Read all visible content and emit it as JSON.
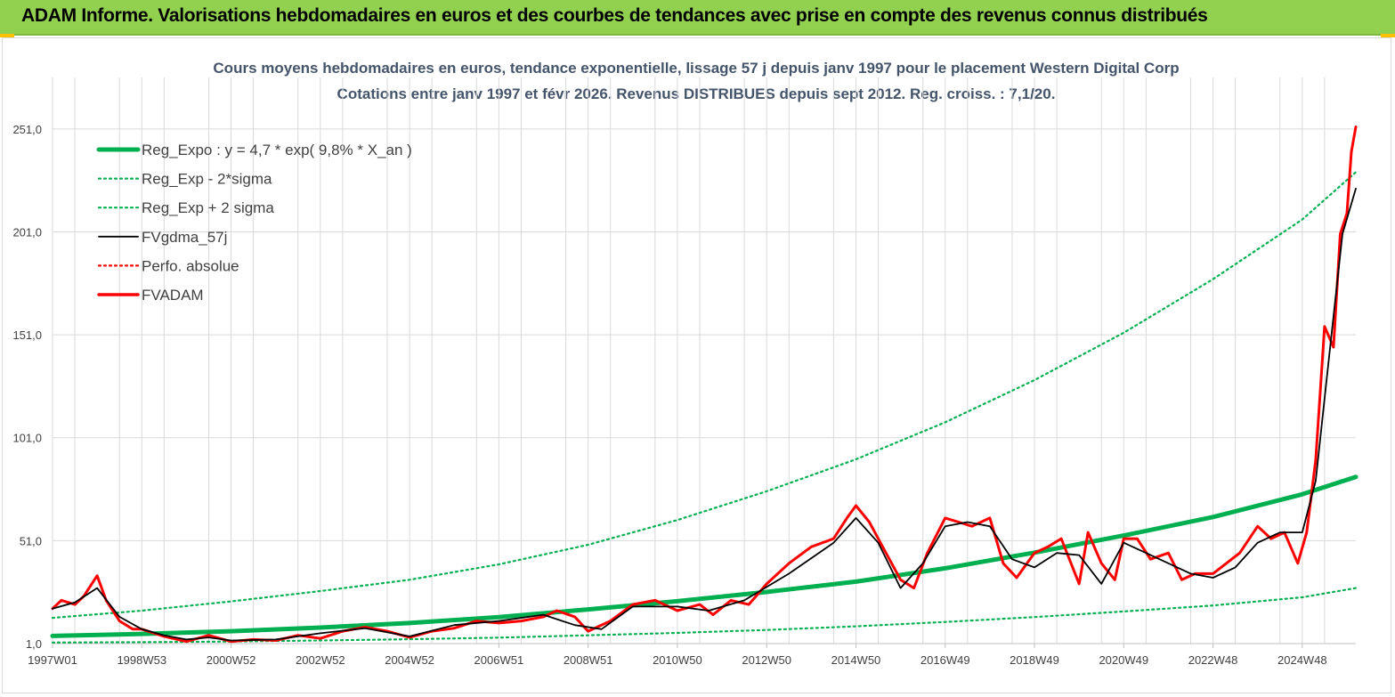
{
  "header": {
    "title": "ADAM Informe. Valorisations hebdomadaires en euros et des courbes de tendances avec prise en compte des revenus connus distribués"
  },
  "colors": {
    "banner": "#92d050",
    "reg_expo": "#00b050",
    "bands": "#00b050",
    "gdma": "#000000",
    "fvadam": "#ff0000",
    "perfo": "#ff0000",
    "grid": "#d9d9d9"
  },
  "chart_data": {
    "type": "line",
    "title": "Cours moyens hebdomadaires en euros, tendance exponentielle, lissage 57 j depuis janv 1997 pour le placement Western Digital Corp",
    "subtitle": "Cotations entre janv 1997 et févr 2026. Revenus DISTRIBUES depuis sept 2012. Reg. croiss. : 7,1/20.",
    "xlabel": "",
    "ylabel": "",
    "ylim": [
      1.0,
      276.0
    ],
    "xlim": [
      1997.0,
      2026.2
    ],
    "y_ticks": [
      "1,0",
      "51,0",
      "101,0",
      "151,0",
      "201,0",
      "251,0"
    ],
    "y_tick_values": [
      1,
      51,
      101,
      151,
      201,
      251
    ],
    "x_ticks": [
      "1997W01",
      "1998W53",
      "2000W52",
      "2002W52",
      "2004W52",
      "2006W51",
      "2008W51",
      "2010W50",
      "2012W50",
      "2014W50",
      "2016W49",
      "2018W49",
      "2020W49",
      "2022W48",
      "2024W48"
    ],
    "x_tick_values": [
      1997.0,
      1999.0,
      2001.0,
      2003.0,
      2005.0,
      2007.0,
      2009.0,
      2011.0,
      2013.0,
      2015.0,
      2017.0,
      2019.0,
      2021.0,
      2023.0,
      2025.0
    ],
    "grid": true,
    "legend_position": "top-left",
    "series": [
      {
        "name": "Reg_Expo : y = 4,7 * exp( 9,8% *  X_an )",
        "style": "solid-thick",
        "color": "#00b050",
        "x": [
          1997.0,
          1999.0,
          2001.0,
          2003.0,
          2005.0,
          2007.0,
          2009.0,
          2011.0,
          2013.0,
          2015.0,
          2017.0,
          2019.0,
          2021.0,
          2023.0,
          2025.0,
          2026.2
        ],
        "y": [
          4.7,
          5.7,
          7.0,
          8.8,
          11.0,
          13.9,
          17.6,
          21.6,
          26.1,
          31.1,
          37.6,
          45.2,
          53.5,
          62.5,
          73.5,
          82.0
        ]
      },
      {
        "name": "Reg_Exp - 2*sigma",
        "style": "dotted",
        "color": "#00b050",
        "x": [
          1997.0,
          1999.0,
          2001.0,
          2003.0,
          2005.0,
          2007.0,
          2009.0,
          2011.0,
          2013.0,
          2015.0,
          2017.0,
          2019.0,
          2021.0,
          2023.0,
          2025.0,
          2026.2
        ],
        "y": [
          1.5,
          1.7,
          2.0,
          2.5,
          3.1,
          3.9,
          5.0,
          6.2,
          7.6,
          9.4,
          11.5,
          13.9,
          16.6,
          19.5,
          23.5,
          28.0
        ]
      },
      {
        "name": "Reg_Exp + 2 sigma",
        "style": "dotted",
        "color": "#00b050",
        "x": [
          1997.0,
          1999.0,
          2001.0,
          2003.0,
          2005.0,
          2007.0,
          2009.0,
          2011.0,
          2013.0,
          2015.0,
          2017.0,
          2019.0,
          2021.0,
          2023.0,
          2025.0,
          2026.2
        ],
        "y": [
          13.5,
          17.0,
          21.5,
          26.5,
          32.0,
          39.5,
          49.0,
          61.0,
          75.0,
          90.5,
          108.5,
          129.0,
          152.0,
          178.0,
          207.0,
          230.0
        ]
      },
      {
        "name": "FVgdma_57j",
        "style": "solid",
        "color": "#000000",
        "x": [
          1997.0,
          1997.5,
          1998.0,
          1998.5,
          1999.0,
          1999.5,
          2000.0,
          2000.5,
          2001.0,
          2002.0,
          2003.0,
          2004.0,
          2005.0,
          2006.0,
          2007.0,
          2008.0,
          2008.7,
          2009.3,
          2010.0,
          2011.0,
          2011.7,
          2012.5,
          2013.5,
          2014.5,
          2015.0,
          2015.5,
          2016.0,
          2016.5,
          2017.0,
          2017.5,
          2018.0,
          2018.5,
          2019.0,
          2019.5,
          2020.0,
          2020.5,
          2021.0,
          2021.5,
          2022.0,
          2022.5,
          2023.0,
          2023.5,
          2024.0,
          2024.5,
          2025.0,
          2025.3,
          2025.6,
          2025.9,
          2026.2
        ],
        "y": [
          18.0,
          21.0,
          28.0,
          14.0,
          8.0,
          5.0,
          3.0,
          4.0,
          2.5,
          3.0,
          6.0,
          8.5,
          4.5,
          10.0,
          12.0,
          15.0,
          10.0,
          8.0,
          19.0,
          19.0,
          17.0,
          22.0,
          35.0,
          50.0,
          62.0,
          50.0,
          28.0,
          40.0,
          58.0,
          60.0,
          58.0,
          42.0,
          38.0,
          45.0,
          44.0,
          30.0,
          50.0,
          45.0,
          40.0,
          35.0,
          33.0,
          38.0,
          50.0,
          55.0,
          55.0,
          80.0,
          140.0,
          200.0,
          222.0
        ]
      },
      {
        "name": "Perfo. absolue",
        "style": "dotted",
        "color": "#ff0000",
        "x": [],
        "y": []
      },
      {
        "name": "FVADAM",
        "style": "solid-thick",
        "color": "#ff0000",
        "x": [
          1997.0,
          1997.2,
          1997.5,
          1997.7,
          1998.0,
          1998.2,
          1998.5,
          1998.8,
          1999.0,
          1999.5,
          2000.0,
          2000.5,
          2001.0,
          2001.5,
          2002.0,
          2002.5,
          2003.0,
          2003.5,
          2004.0,
          2004.5,
          2005.0,
          2005.5,
          2006.0,
          2006.5,
          2007.0,
          2007.5,
          2008.0,
          2008.3,
          2008.7,
          2009.0,
          2009.5,
          2010.0,
          2010.5,
          2011.0,
          2011.5,
          2011.8,
          2012.2,
          2012.6,
          2013.0,
          2013.5,
          2014.0,
          2014.5,
          2014.8,
          2015.0,
          2015.3,
          2015.6,
          2016.0,
          2016.3,
          2016.6,
          2017.0,
          2017.3,
          2017.6,
          2018.0,
          2018.3,
          2018.6,
          2019.0,
          2019.3,
          2019.6,
          2020.0,
          2020.2,
          2020.5,
          2020.8,
          2021.0,
          2021.3,
          2021.6,
          2022.0,
          2022.3,
          2022.6,
          2023.0,
          2023.3,
          2023.6,
          2024.0,
          2024.3,
          2024.6,
          2024.9,
          2025.1,
          2025.3,
          2025.5,
          2025.7,
          2025.85,
          2026.0,
          2026.1,
          2026.2
        ],
        "y": [
          18.0,
          22.0,
          20.0,
          24.0,
          34.0,
          22.0,
          12.0,
          8.0,
          8.0,
          4.5,
          2.0,
          5.0,
          2.0,
          3.0,
          2.5,
          5.0,
          3.5,
          7.0,
          9.0,
          7.0,
          4.0,
          7.0,
          8.5,
          12.0,
          11.0,
          12.0,
          14.0,
          17.0,
          14.0,
          7.0,
          12.0,
          20.0,
          22.0,
          17.0,
          20.0,
          15.0,
          22.0,
          20.0,
          30.0,
          40.0,
          48.0,
          52.0,
          62.0,
          68.0,
          60.0,
          48.0,
          32.0,
          28.0,
          45.0,
          62.0,
          60.0,
          58.0,
          62.0,
          40.0,
          33.0,
          45.0,
          48.0,
          52.0,
          30.0,
          55.0,
          40.0,
          32.0,
          52.0,
          52.0,
          42.0,
          45.0,
          32.0,
          35.0,
          35.0,
          40.0,
          45.0,
          58.0,
          52.0,
          55.0,
          40.0,
          55.0,
          90.0,
          155.0,
          145.0,
          200.0,
          210.0,
          240.0,
          252.0
        ]
      }
    ]
  }
}
